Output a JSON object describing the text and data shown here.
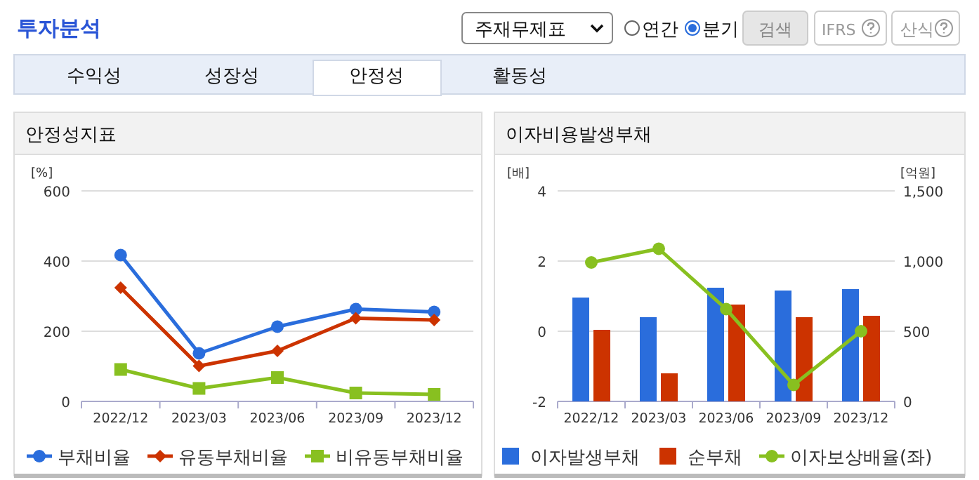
{
  "chart_data": [
    {
      "type": "other",
      "title": "투자분석",
      "annotations": [
        "주재무제표",
        "연간",
        "분기",
        "검색",
        "IFRS",
        "산식",
        "수익성",
        "성장성",
        "안정성",
        "활동성"
      ]
    },
    {
      "type": "line",
      "title": "안정성지표",
      "ylabel": "[%]",
      "categories": [
        "2022/12",
        "2023/03",
        "2023/06",
        "2023/09",
        "2023/12"
      ],
      "series": [
        {
          "name": "부채비율",
          "color": "#2a6ddc",
          "marker": "circle",
          "values": [
            417,
            137,
            213,
            263,
            255
          ]
        },
        {
          "name": "유동부채비율",
          "color": "#cc3300",
          "marker": "diamond",
          "values": [
            324,
            101,
            144,
            237,
            232
          ]
        },
        {
          "name": "비유동부채비율",
          "color": "#88c020",
          "marker": "square",
          "values": [
            91,
            37,
            68,
            24,
            20
          ]
        }
      ],
      "ylim": [
        0,
        600
      ],
      "yticks": [
        0,
        200,
        400,
        600
      ],
      "grid": "y",
      "legend": "bottom"
    },
    {
      "type": "bar",
      "title": "이자비용발생부채",
      "ylabel": "[배]",
      "y2label": "[억원]",
      "categories": [
        "2022/12",
        "2023/03",
        "2023/06",
        "2023/09",
        "2023/12"
      ],
      "series": [
        {
          "name": "이자발생부채",
          "color": "#2a6ddc",
          "axis": "y2",
          "values": [
            740,
            600,
            810,
            790,
            800
          ]
        },
        {
          "name": "순부채",
          "color": "#cc3300",
          "axis": "y2",
          "values": [
            510,
            200,
            690,
            600,
            610
          ]
        },
        {
          "name": "이자보상배율(좌)",
          "type": "line",
          "color": "#88c020",
          "marker": "circle",
          "values": [
            1.96,
            2.35,
            0.63,
            -1.53,
            0.0
          ]
        }
      ],
      "ylim": [
        -2,
        4
      ],
      "yticks": [
        -2,
        0,
        2,
        4
      ],
      "y2lim": [
        0,
        1500
      ],
      "y2ticks": [
        0,
        500,
        {
          "value": 1000,
          "label": "1,000"
        },
        {
          "value": 1500,
          "label": "1,500"
        }
      ],
      "grid": "y",
      "legend": "bottom"
    }
  ]
}
